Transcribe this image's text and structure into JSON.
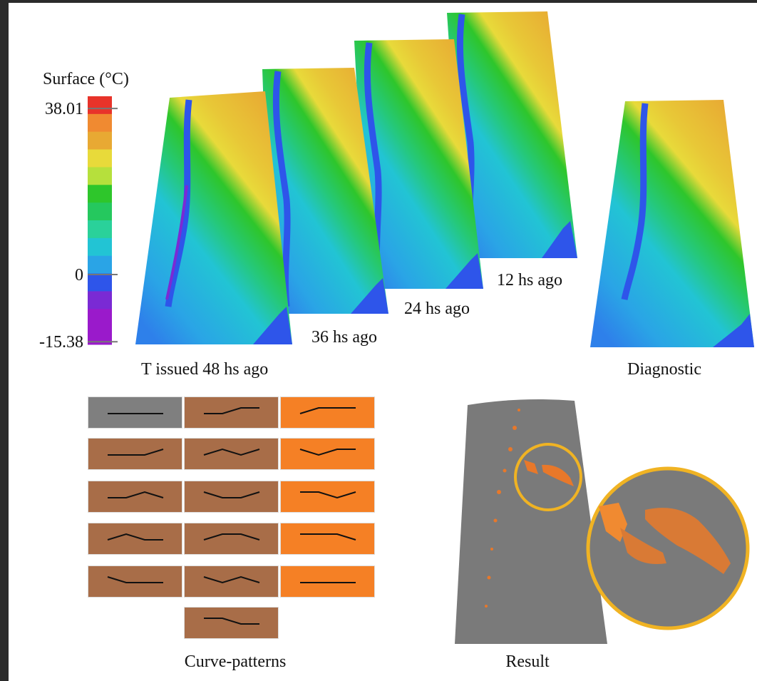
{
  "colorbar": {
    "title": "Surface (°C)",
    "ticks": [
      38.01,
      0,
      -15.38
    ],
    "range": [
      -16,
      40.8
    ],
    "colors": [
      "#e8332a",
      "#f08a31",
      "#e8a933",
      "#e8da3a",
      "#b6e03c",
      "#2ec62b",
      "#25c85e",
      "#2ad19a",
      "#22c4d4",
      "#2aa4e6",
      "#2e55ea",
      "#7a2ad4",
      "#9a1acb",
      "#9a1acb"
    ]
  },
  "maps": [
    {
      "label": "12 hs ago"
    },
    {
      "label": "24 hs ago"
    },
    {
      "label": "36 hs ago"
    },
    {
      "label": "T issued 48 hs ago"
    },
    {
      "label": "Diagnostic"
    }
  ],
  "curve_patterns": {
    "label": "Curve-patterns"
  },
  "result": {
    "label": "Result"
  }
}
